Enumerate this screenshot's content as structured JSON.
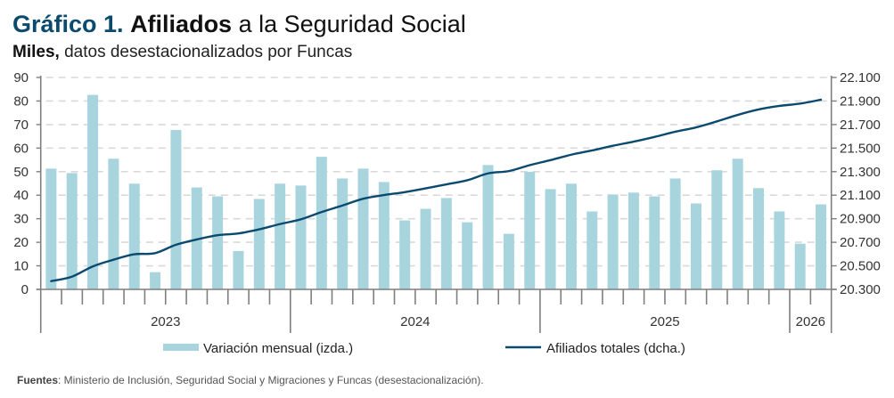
{
  "header": {
    "title_lead": "Gráfico 1.",
    "title_bold": "Afiliados",
    "title_rest": " a la Seguridad Social",
    "subtitle_bold": "Miles,",
    "subtitle_rest": " datos desestacionalizados por Funcas"
  },
  "footer": {
    "label": "Fuentes",
    "text": ": Ministerio de Inclusión, Seguridad Social y Migraciones y Funcas (desestacionalización)."
  },
  "colors": {
    "bars": "#a8d5dd",
    "line": "#0b4a6f",
    "title_accent": "#0b4a6f",
    "grid": "#d9d9d9",
    "axis": "#7f7f7f"
  },
  "chart_data": {
    "type": "bar+line",
    "title": "Gráfico 1. Afiliados a la Seguridad Social",
    "subtitle": "Miles, datos desestacionalizados por Funcas",
    "x": [
      "2023-01",
      "2023-02",
      "2023-03",
      "2023-04",
      "2023-05",
      "2023-06",
      "2023-07",
      "2023-08",
      "2023-09",
      "2023-10",
      "2023-11",
      "2023-12",
      "2024-01",
      "2024-02",
      "2024-03",
      "2024-04",
      "2024-05",
      "2024-06",
      "2024-07",
      "2024-08",
      "2024-09",
      "2024-10",
      "2024-11",
      "2024-12",
      "2025-01",
      "2025-02",
      "2025-03",
      "2025-04",
      "2025-05",
      "2025-06",
      "2025-07",
      "2025-08",
      "2025-09",
      "2025-10",
      "2025-11",
      "2025-12",
      "2026-01",
      "2026-02"
    ],
    "year_groups": [
      {
        "label": "2023",
        "months": 12
      },
      {
        "label": "2024",
        "months": 12
      },
      {
        "label": "2025",
        "months": 12
      },
      {
        "label": "2026",
        "months": 2
      }
    ],
    "series": [
      {
        "name": "Variación mensual (izda.)",
        "type": "bar",
        "axis": "left",
        "values": [
          51.3,
          49.4,
          82.6,
          55.5,
          44.9,
          7.3,
          67.7,
          43.3,
          39.5,
          16.3,
          38.4,
          44.9,
          44.1,
          56.3,
          47.1,
          51.3,
          45.6,
          29.3,
          34.2,
          38.8,
          28.5,
          52.8,
          23.6,
          49.9,
          42.6,
          44.9,
          33.1,
          40.3,
          41.1,
          39.5,
          47.1,
          36.5,
          50.6,
          55.5,
          43.0,
          33.1,
          19.4,
          36.1
        ]
      },
      {
        "name": "Afiliados totales (dcha.)",
        "type": "line",
        "axis": "right",
        "values": [
          20370,
          20408,
          20495,
          20552,
          20598,
          20608,
          20679,
          20724,
          20760,
          20775,
          20810,
          20855,
          20895,
          20957,
          21012,
          21070,
          21101,
          21126,
          21158,
          21192,
          21227,
          21285,
          21305,
          21355,
          21398,
          21444,
          21480,
          21520,
          21555,
          21595,
          21639,
          21676,
          21727,
          21782,
          21828,
          21858,
          21878,
          21911
        ]
      }
    ],
    "left_axis": {
      "ylim": [
        0,
        90
      ],
      "ticks": [
        0,
        10,
        20,
        30,
        40,
        50,
        60,
        70,
        80,
        90
      ],
      "tick_labels": [
        "0",
        "10",
        "20",
        "30",
        "40",
        "50",
        "60",
        "70",
        "80",
        "90"
      ]
    },
    "right_axis": {
      "ylim": [
        20300,
        22100
      ],
      "ticks": [
        20300,
        20500,
        20700,
        20900,
        21100,
        21300,
        21500,
        21700,
        21900,
        22100
      ],
      "tick_labels": [
        "20.300",
        "20.500",
        "20.700",
        "20.900",
        "21.100",
        "21.300",
        "21.500",
        "21.700",
        "21.900",
        "22.100"
      ]
    },
    "grid": true,
    "grid_style": "dashed-horizontal",
    "legend": {
      "placement": "bottom-center",
      "entries": [
        {
          "label": "Variación mensual (izda.)",
          "kind": "bar"
        },
        {
          "label": "Afiliados totales (dcha.)",
          "kind": "line"
        }
      ]
    },
    "xlabel": "",
    "ylabel_left": "",
    "ylabel_right": ""
  }
}
